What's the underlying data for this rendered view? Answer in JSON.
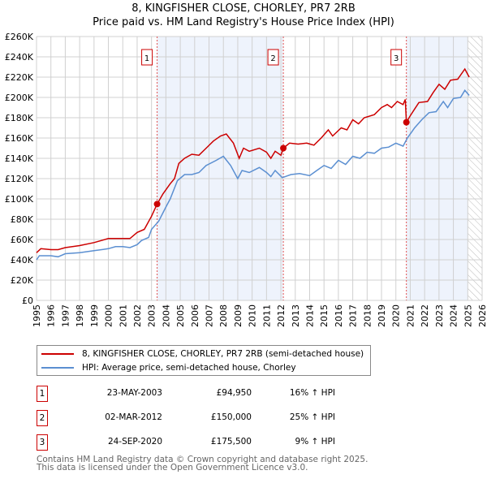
{
  "title_line1": "8, KINGFISHER CLOSE, CHORLEY, PR7 2RB",
  "title_line2": "Price paid vs. HM Land Registry's House Price Index (HPI)",
  "chart_data": {
    "type": "line",
    "title": "8, KINGFISHER CLOSE, CHORLEY, PR7 2RB - Price paid vs. HM Land Registry's House Price Index (HPI)",
    "xlabel": "",
    "ylabel": "",
    "xlim": [
      1995,
      2026
    ],
    "ylim": [
      0,
      260000
    ],
    "x_ticks": [
      "1995",
      "1996",
      "1997",
      "1998",
      "1999",
      "2000",
      "2001",
      "2002",
      "2003",
      "2004",
      "2005",
      "2006",
      "2007",
      "2008",
      "2009",
      "2010",
      "2011",
      "2012",
      "2013",
      "2014",
      "2015",
      "2016",
      "2017",
      "2018",
      "2019",
      "2020",
      "2021",
      "2022",
      "2023",
      "2024",
      "2025",
      "2026"
    ],
    "y_ticks": [
      "£0",
      "£20K",
      "£40K",
      "£60K",
      "£80K",
      "£100K",
      "£120K",
      "£140K",
      "£160K",
      "£180K",
      "£200K",
      "£220K",
      "£240K",
      "£260K"
    ],
    "grid": true,
    "shaded_ranges": [
      [
        2003.39,
        2012.17
      ],
      [
        2020.73,
        2025.0
      ]
    ],
    "hatched_range": [
      2025.0,
      2026
    ],
    "series": [
      {
        "name": "8, KINGFISHER CLOSE, CHORLEY, PR7 2RB (semi-detached house)",
        "color": "#cc0000",
        "x": [
          1995,
          1995.3,
          1996,
          1996.5,
          1997,
          1998,
          1999,
          2000,
          2001,
          2001.5,
          2002,
          2002.5,
          2003,
          2003.39,
          2003.8,
          2004.3,
          2004.6,
          2004.9,
          2005.3,
          2005.8,
          2006.3,
          2006.8,
          2007.3,
          2007.8,
          2008.2,
          2008.7,
          2009.1,
          2009.4,
          2009.8,
          2010.5,
          2011,
          2011.3,
          2011.6,
          2012.0,
          2012.17,
          2012.6,
          2013.2,
          2013.8,
          2014.3,
          2014.8,
          2015.3,
          2015.6,
          2016.2,
          2016.6,
          2017,
          2017.4,
          2017.8,
          2018.5,
          2019,
          2019.4,
          2019.7,
          2020.1,
          2020.5,
          2020.65,
          2020.73,
          2021,
          2021.6,
          2022.2,
          2022.6,
          2023,
          2023.4,
          2023.8,
          2024.3,
          2024.8,
          2025.1
        ],
        "values": [
          47000,
          51000,
          50000,
          50000,
          52000,
          54000,
          57000,
          61000,
          61000,
          61000,
          67000,
          70000,
          83000,
          94950,
          105000,
          115000,
          120000,
          135000,
          140000,
          144000,
          143000,
          150000,
          157000,
          162000,
          164000,
          155000,
          140000,
          150000,
          147000,
          150000,
          146000,
          140000,
          147000,
          143000,
          150000,
          155000,
          154000,
          155000,
          153000,
          160000,
          168000,
          162000,
          170000,
          168000,
          178000,
          174000,
          180000,
          183000,
          190000,
          193000,
          190000,
          196000,
          193000,
          198000,
          175500,
          182000,
          195000,
          196000,
          205000,
          213000,
          208000,
          217000,
          218000,
          228000,
          220000
        ]
      },
      {
        "name": "HPI: Average price, semi-detached house, Chorley",
        "color": "#5b8fd1",
        "x": [
          1995,
          1995.2,
          1996,
          1996.5,
          1997,
          1998,
          1999,
          2000,
          2000.5,
          2001,
          2001.5,
          2002,
          2002.3,
          2002.8,
          2003,
          2003.5,
          2004,
          2004.3,
          2004.8,
          2005.3,
          2005.8,
          2006.3,
          2006.8,
          2007.5,
          2008,
          2008.5,
          2009,
          2009.3,
          2009.8,
          2010.5,
          2011,
          2011.3,
          2011.6,
          2012.1,
          2012.7,
          2013.3,
          2014,
          2014.5,
          2015,
          2015.5,
          2016,
          2016.5,
          2017,
          2017.5,
          2018,
          2018.5,
          2019,
          2019.5,
          2020,
          2020.5,
          2020.8,
          2021.3,
          2021.8,
          2022.3,
          2022.8,
          2023.3,
          2023.6,
          2024,
          2024.5,
          2024.8,
          2025.1
        ],
        "values": [
          40000,
          44000,
          44000,
          43000,
          46000,
          47000,
          49000,
          51000,
          53000,
          53000,
          52000,
          55000,
          59000,
          62000,
          70000,
          78000,
          92000,
          100000,
          118000,
          124000,
          124000,
          126000,
          133000,
          138000,
          142000,
          133000,
          120000,
          128000,
          126000,
          131000,
          126000,
          122000,
          128000,
          121000,
          124000,
          125000,
          123000,
          128000,
          133000,
          130000,
          138000,
          134000,
          142000,
          140000,
          146000,
          145000,
          150000,
          151000,
          155000,
          152000,
          160000,
          170000,
          178000,
          185000,
          186000,
          196000,
          190000,
          199000,
          200000,
          207000,
          202000
        ]
      }
    ],
    "annotations": [
      {
        "label": "1",
        "x": 2003.39,
        "y": 94950
      },
      {
        "label": "2",
        "x": 2012.17,
        "y": 150000
      },
      {
        "label": "3",
        "x": 2020.73,
        "y": 175500
      }
    ]
  },
  "legend": {
    "property": "8, KINGFISHER CLOSE, CHORLEY, PR7 2RB (semi-detached house)",
    "hpi": "HPI: Average price, semi-detached house, Chorley"
  },
  "transactions": [
    {
      "num": "1",
      "date": "23-MAY-2003",
      "price": "£94,950",
      "hpi": "16% ↑ HPI"
    },
    {
      "num": "2",
      "date": "02-MAR-2012",
      "price": "£150,000",
      "hpi": "25% ↑ HPI"
    },
    {
      "num": "3",
      "date": "24-SEP-2020",
      "price": "£175,500",
      "hpi": "9% ↑ HPI"
    }
  ],
  "footer": {
    "line1": "Contains HM Land Registry data © Crown copyright and database right 2025.",
    "line2": "This data is licensed under the Open Government Licence v3.0."
  }
}
